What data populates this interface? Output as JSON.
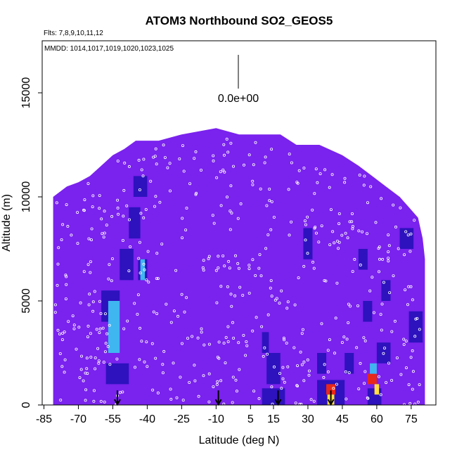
{
  "chart_data": {
    "type": "heatmap",
    "title": "ATOM3 Northbound SO2_GEOS5",
    "flights_label": "Flts: 7,8,9,10,11,12",
    "dates_label": "MMDD: 1014,1017,1019,1020,1023,1025",
    "xlabel": "Latitude (deg N)",
    "ylabel": "Altitude (m)",
    "xlim": [
      -85,
      85
    ],
    "ylim": [
      0,
      17500
    ],
    "x_ticks": [
      -85,
      -70,
      -55,
      -40,
      -25,
      -10,
      5,
      15,
      30,
      45,
      60,
      75
    ],
    "x_tick_labels": [
      "-85",
      "-70",
      "-55",
      "-40",
      "-25",
      "-10",
      "5",
      "15",
      "30",
      "45",
      "60",
      "75"
    ],
    "y_ticks": [
      0,
      5000,
      10000,
      15000
    ],
    "y_tick_labels": [
      "0",
      "5000",
      "10000",
      "15000"
    ],
    "legend_value": "0.0e+00",
    "colors": {
      "background_field": "#7a22ee",
      "dark_blue": "#1a0fb0",
      "mid_blue": "#2e50e0",
      "cyan": "#3fb6f0",
      "yellow": "#ffe040",
      "red": "#e8281a",
      "sample_marker": "#ffffff"
    },
    "arrow_latitudes": [
      -53,
      -9,
      17,
      40
    ],
    "hotspots": [
      {
        "lat_min": -57,
        "lat_max": -52,
        "alt_min": 2500,
        "alt_max": 5000,
        "level": "cyan"
      },
      {
        "lat_min": -43,
        "lat_max": -41,
        "alt_min": 6000,
        "alt_max": 7000,
        "level": "cyan"
      },
      {
        "lat_min": 38,
        "lat_max": 42,
        "alt_min": 500,
        "alt_max": 1000,
        "level": "red"
      },
      {
        "lat_min": 38.5,
        "lat_max": 41.5,
        "alt_min": 0,
        "alt_max": 500,
        "level": "yellow"
      },
      {
        "lat_min": 56,
        "lat_max": 60,
        "alt_min": 1000,
        "alt_max": 1500,
        "level": "red"
      },
      {
        "lat_min": 57,
        "lat_max": 60,
        "alt_min": 1500,
        "alt_max": 2000,
        "level": "cyan"
      },
      {
        "lat_min": 59,
        "lat_max": 61,
        "alt_min": 500,
        "alt_max": 1000,
        "level": "yellow"
      }
    ]
  }
}
